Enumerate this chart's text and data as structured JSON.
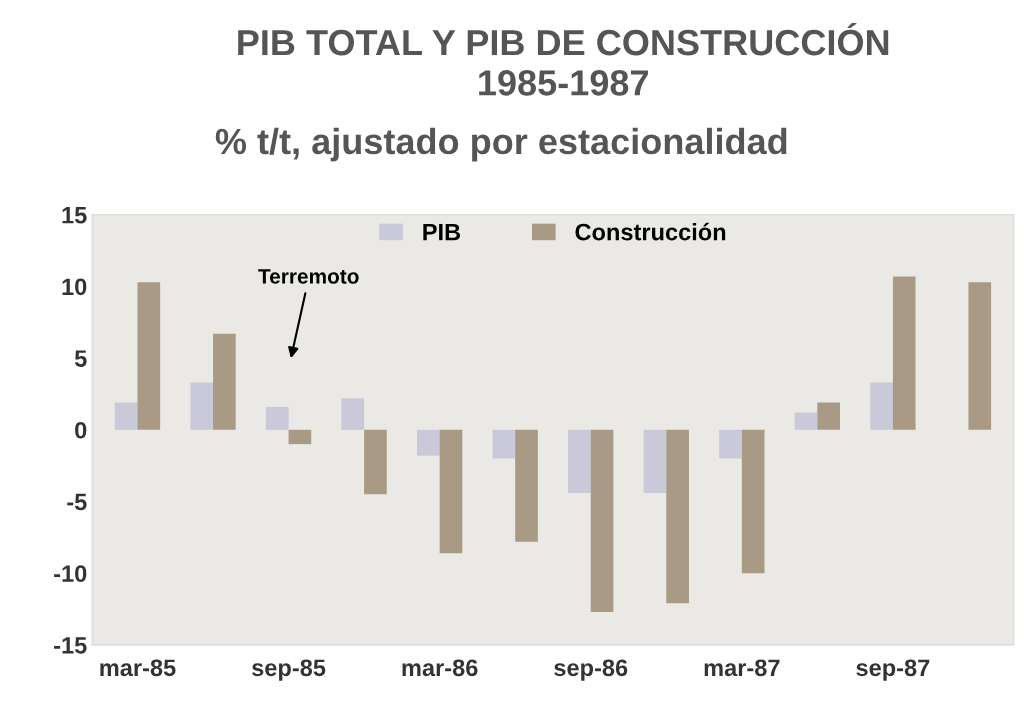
{
  "chart_data": {
    "type": "bar",
    "title": "PIB TOTAL Y PIB DE CONSTRUCCIÓN\n1985-1987",
    "subtitle": "% t/t, ajustado por estacionalidad",
    "categories": [
      "mar-85",
      null,
      "sep-85",
      null,
      "mar-86",
      null,
      "sep-86",
      null,
      "mar-87",
      null,
      "sep-87",
      null
    ],
    "series": [
      {
        "name": "PIB",
        "color": "#c9c9d9",
        "values": [
          1.9,
          3.3,
          1.6,
          2.2,
          -1.8,
          -2.0,
          -4.4,
          -4.4,
          -2.0,
          1.2,
          3.3,
          0
        ]
      },
      {
        "name": "Construcción",
        "color": "#a89a84",
        "values": [
          10.3,
          6.7,
          -1.0,
          -4.5,
          -8.6,
          -7.8,
          -12.7,
          -12.1,
          -10.0,
          1.9,
          10.7,
          10.3
        ]
      }
    ],
    "annotations": [
      "Terremoto"
    ],
    "ylim": [
      -15,
      15
    ],
    "yticks": [
      -15,
      -10,
      -5,
      0,
      5,
      10,
      15
    ],
    "grid": false,
    "legend": "top"
  }
}
